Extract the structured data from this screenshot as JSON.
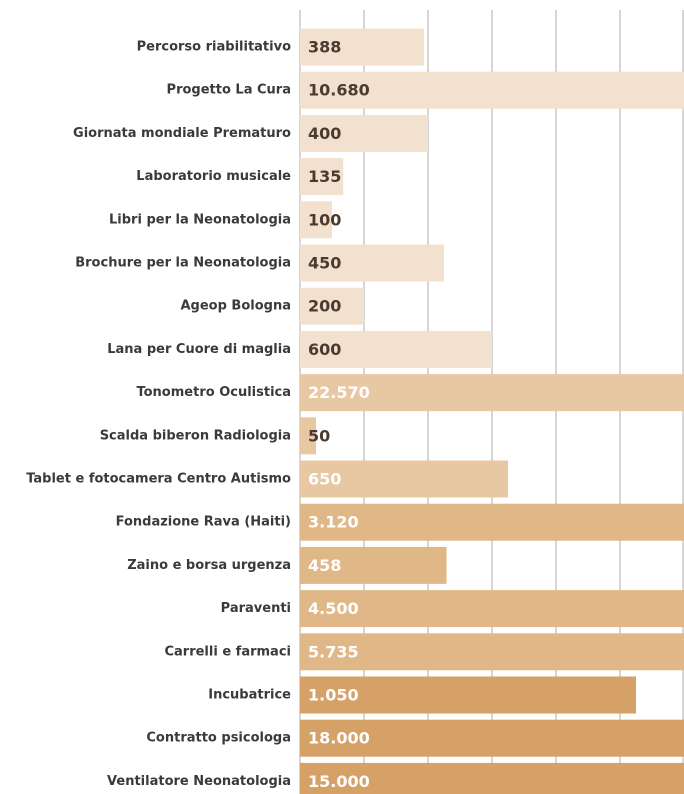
{
  "chart_data": {
    "type": "bar",
    "orientation": "horizontal",
    "categories": [
      "Percorso riabilitativo",
      "Progetto La Cura",
      "Giornata mondiale Prematuro",
      "Laboratorio musicale",
      "Libri per la Neonatologia",
      "Brochure per la Neonatologia",
      "Ageop Bologna",
      "Lana per Cuore di maglia",
      "Tonometro Oculistica",
      "Scalda biberon Radiologia",
      "Tablet e fotocamera Centro Autismo",
      "Fondazione Rava (Haiti)",
      "Zaino e borsa urgenza",
      "Paraventi",
      "Carrelli e farmaci",
      "Incubatrice",
      "Contratto psicologa",
      "Ventilatore Neonatologia"
    ],
    "values": [
      388,
      10680,
      400,
      135,
      100,
      450,
      200,
      600,
      22570,
      50,
      650,
      3120,
      458,
      4500,
      5735,
      1050,
      18000,
      15000
    ],
    "value_labels": [
      "388",
      "10.680",
      "400",
      "135",
      "100",
      "450",
      "200",
      "600",
      "22.570",
      "50",
      "650",
      "3.120",
      "458",
      "4.500",
      "5.735",
      "1.050",
      "18.000",
      "15.000"
    ],
    "colors": [
      "#f3e1cf",
      "#f3e1cf",
      "#f3e1cf",
      "#f3e1cf",
      "#f3e1cf",
      "#f3e1cf",
      "#f3e1cf",
      "#f3e1cf",
      "#e8c8a2",
      "#e8c8a2",
      "#e8c8a2",
      "#e0b888",
      "#e0b888",
      "#e0b888",
      "#e0b888",
      "#d5a166",
      "#d5a166",
      "#d5a166"
    ],
    "label_colors": [
      "#4a3b30",
      "#4a3b30",
      "#4a3b30",
      "#4a3b30",
      "#4a3b30",
      "#4a3b30",
      "#4a3b30",
      "#4a3b30",
      "#ffffff",
      "#4a3b30",
      "#ffffff",
      "#ffffff",
      "#ffffff",
      "#ffffff",
      "#ffffff",
      "#ffffff",
      "#ffffff",
      "#ffffff"
    ],
    "xlim": [
      0,
      1200
    ],
    "xticks": [
      0,
      200,
      400,
      600,
      800,
      1000,
      1200
    ],
    "grid": true
  }
}
